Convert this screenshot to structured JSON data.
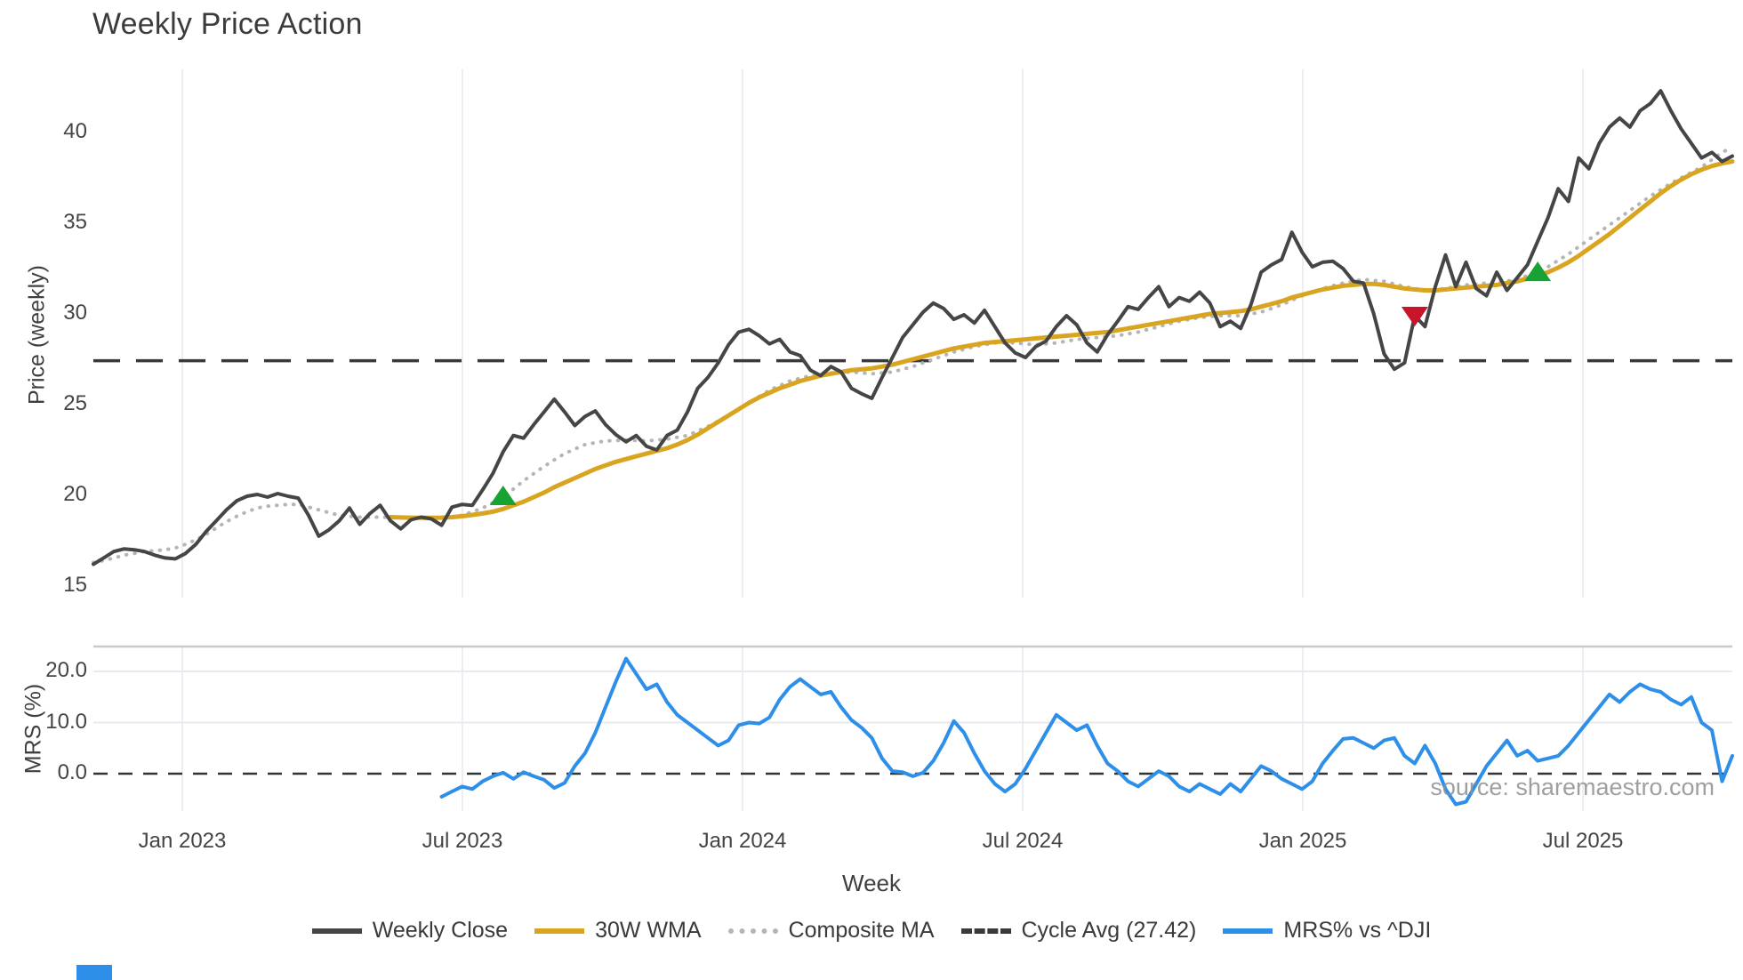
{
  "title": "Weekly Price Action",
  "watermark": "source: sharemaestro.com",
  "axes": {
    "x_label": "Week",
    "x_tick_labels": [
      "Jan 2023",
      "Jul 2023",
      "Jan 2024",
      "Jul 2024",
      "Jan 2025",
      "Jul 2025"
    ],
    "main_y_label": "Price (weekly)",
    "main_y_ticks": [
      40,
      35,
      30,
      25,
      20,
      15
    ],
    "mrs_y_label": "MRS (%)",
    "mrs_y_ticks": [
      "20.0",
      "10.0",
      "0.0"
    ]
  },
  "legend": {
    "items": [
      {
        "label": "Weekly Close",
        "style": "solid",
        "color": "#454545"
      },
      {
        "label": "30W WMA",
        "style": "solid",
        "color": "#d9a521"
      },
      {
        "label": "Composite MA",
        "style": "dotted",
        "color": "#b5b5b5"
      },
      {
        "label": "Cycle Avg (27.42)",
        "style": "dashed",
        "color": "#3a3a3a"
      },
      {
        "label": "MRS% vs ^DJI",
        "style": "solid",
        "color": "#2e8fe8"
      }
    ]
  },
  "colors": {
    "close": "#454545",
    "wma": "#d9a521",
    "composite": "#b5b5b5",
    "cycle": "#3a3a3a",
    "mrs": "#2e8fe8",
    "buy_marker": "#18a233",
    "sell_marker": "#c9152c",
    "gridline": "#ededf3",
    "mrs_grid": "#e9e9f0",
    "mrs_border": "#c9c9c9",
    "zero_line": "#333333"
  },
  "chart_data": [
    {
      "type": "line",
      "title": "Weekly Price Action",
      "xlabel": "Week",
      "ylabel": "Price (weekly)",
      "x_range_labels": [
        "Nov 2022",
        "Oct 2025"
      ],
      "ylim": [
        14.4,
        43.5
      ],
      "grid": "vertical-only",
      "cycle_avg": 27.42,
      "series": [
        {
          "name": "Weekly Close",
          "start_index": 0,
          "values": [
            16.2,
            16.55,
            16.9,
            17.05,
            17.0,
            16.9,
            16.7,
            16.55,
            16.5,
            16.8,
            17.3,
            18.0,
            18.6,
            19.2,
            19.7,
            19.95,
            20.05,
            19.9,
            20.1,
            19.95,
            19.85,
            18.9,
            17.75,
            18.1,
            18.6,
            19.3,
            18.4,
            19.0,
            19.45,
            18.6,
            18.15,
            18.65,
            18.8,
            18.7,
            18.35,
            19.35,
            19.5,
            19.45,
            20.3,
            21.2,
            22.4,
            23.3,
            23.15,
            23.9,
            24.6,
            25.3,
            24.6,
            23.85,
            24.35,
            24.65,
            23.9,
            23.35,
            22.95,
            23.3,
            22.7,
            22.5,
            23.3,
            23.6,
            24.6,
            25.9,
            26.5,
            27.3,
            28.3,
            29.0,
            29.15,
            28.8,
            28.35,
            28.6,
            27.9,
            27.7,
            26.9,
            26.6,
            27.1,
            26.8,
            25.9,
            25.6,
            25.35,
            26.5,
            27.6,
            28.7,
            29.4,
            30.1,
            30.6,
            30.3,
            29.7,
            29.95,
            29.5,
            30.2,
            29.3,
            28.4,
            27.85,
            27.6,
            28.2,
            28.5,
            29.3,
            29.9,
            29.4,
            28.4,
            27.9,
            28.85,
            29.6,
            30.4,
            30.25,
            30.9,
            31.5,
            30.4,
            30.9,
            30.7,
            31.2,
            30.6,
            29.3,
            29.6,
            29.2,
            30.5,
            32.3,
            32.7,
            33.0,
            34.5,
            33.4,
            32.6,
            32.85,
            32.9,
            32.5,
            31.8,
            31.7,
            30.0,
            27.8,
            26.95,
            27.3,
            29.9,
            29.3,
            31.5,
            33.25,
            31.5,
            32.85,
            31.4,
            31.0,
            32.3,
            31.3,
            32.0,
            32.7,
            34.0,
            35.3,
            36.9,
            36.2,
            38.6,
            38.0,
            39.4,
            40.3,
            40.8,
            40.3,
            41.2,
            41.6,
            42.3,
            41.2,
            40.2,
            39.4,
            38.6,
            38.9,
            38.4,
            38.7
          ]
        },
        {
          "name": "30W WMA",
          "start_index": 29,
          "values": [
            18.8,
            18.78,
            18.77,
            18.76,
            18.76,
            18.77,
            18.8,
            18.85,
            18.92,
            19.0,
            19.1,
            19.25,
            19.45,
            19.65,
            19.9,
            20.15,
            20.45,
            20.7,
            20.95,
            21.2,
            21.45,
            21.65,
            21.85,
            22.0,
            22.15,
            22.3,
            22.45,
            22.6,
            22.8,
            23.05,
            23.35,
            23.7,
            24.05,
            24.4,
            24.75,
            25.1,
            25.4,
            25.65,
            25.9,
            26.1,
            26.3,
            26.45,
            26.6,
            26.7,
            26.8,
            26.9,
            26.95,
            27.0,
            27.1,
            27.2,
            27.35,
            27.5,
            27.65,
            27.8,
            27.95,
            28.1,
            28.2,
            28.3,
            28.4,
            28.45,
            28.5,
            28.55,
            28.6,
            28.65,
            28.7,
            28.75,
            28.8,
            28.85,
            28.9,
            28.95,
            29.0,
            29.1,
            29.2,
            29.3,
            29.4,
            29.5,
            29.6,
            29.7,
            29.8,
            29.9,
            30.0,
            30.05,
            30.1,
            30.15,
            30.25,
            30.4,
            30.55,
            30.7,
            30.9,
            31.05,
            31.2,
            31.35,
            31.45,
            31.55,
            31.6,
            31.65,
            31.65,
            31.6,
            31.5,
            31.4,
            31.35,
            31.3,
            31.3,
            31.35,
            31.4,
            31.45,
            31.5,
            31.55,
            31.6,
            31.7,
            31.8,
            31.95,
            32.1,
            32.3,
            32.55,
            32.85,
            33.2,
            33.6,
            34.0,
            34.4,
            34.85,
            35.3,
            35.75,
            36.2,
            36.65,
            37.05,
            37.4,
            37.7,
            37.95,
            38.15,
            38.3,
            38.4
          ]
        },
        {
          "name": "Composite MA",
          "start_index": 0,
          "values": [
            16.3,
            16.4,
            16.55,
            16.7,
            16.8,
            16.9,
            16.95,
            17.0,
            17.1,
            17.3,
            17.55,
            17.85,
            18.2,
            18.55,
            18.85,
            19.1,
            19.3,
            19.4,
            19.45,
            19.5,
            19.5,
            19.35,
            19.2,
            19.05,
            18.9,
            18.85,
            18.8,
            18.8,
            18.8,
            18.78,
            18.75,
            18.75,
            18.75,
            18.72,
            18.7,
            18.8,
            18.9,
            19.1,
            19.3,
            19.6,
            19.9,
            20.35,
            20.8,
            21.2,
            21.6,
            21.95,
            22.3,
            22.55,
            22.8,
            22.9,
            23.0,
            23.02,
            23.05,
            23.02,
            23.0,
            23.05,
            23.1,
            23.2,
            23.3,
            23.55,
            23.8,
            24.1,
            24.4,
            24.75,
            25.1,
            25.45,
            25.8,
            26.05,
            26.3,
            26.45,
            26.6,
            26.67,
            26.75,
            26.77,
            26.8,
            26.75,
            26.7,
            26.75,
            26.8,
            26.95,
            27.1,
            27.3,
            27.5,
            27.7,
            27.9,
            28.05,
            28.2,
            28.3,
            28.4,
            28.4,
            28.4,
            28.35,
            28.3,
            28.35,
            28.4,
            28.5,
            28.6,
            28.65,
            28.7,
            28.75,
            28.8,
            28.9,
            29.0,
            29.15,
            29.3,
            29.45,
            29.6,
            29.7,
            29.8,
            29.85,
            29.9,
            29.9,
            29.9,
            30.0,
            30.1,
            30.3,
            30.5,
            30.75,
            31.0,
            31.2,
            31.4,
            31.55,
            31.7,
            31.8,
            31.9,
            31.85,
            31.8,
            31.65,
            31.5,
            31.4,
            31.3,
            31.35,
            31.4,
            31.5,
            31.6,
            31.65,
            31.7,
            31.75,
            31.8,
            31.95,
            32.1,
            32.35,
            32.6,
            32.95,
            33.3,
            33.7,
            34.1,
            34.5,
            34.9,
            35.3,
            35.7,
            36.1,
            36.5,
            36.85,
            37.2,
            37.5,
            37.8,
            38.1,
            38.5,
            38.9,
            39.2
          ]
        }
      ],
      "markers": [
        {
          "type": "buy",
          "index": 40,
          "value": 19.95
        },
        {
          "type": "sell",
          "index": 129,
          "value": 29.9
        },
        {
          "type": "buy",
          "index": 141,
          "value": 32.3
        }
      ]
    },
    {
      "type": "line",
      "ylabel": "MRS (%)",
      "zero_line": 0.0,
      "ylim": [
        -7.5,
        24.8
      ],
      "series": [
        {
          "name": "MRS% vs ^DJI",
          "start_index": 34,
          "values": [
            -4.5,
            -3.5,
            -2.5,
            -3.0,
            -1.5,
            -0.5,
            0.2,
            -1.0,
            0.3,
            -0.5,
            -1.2,
            -2.8,
            -1.8,
            1.5,
            4.0,
            8.0,
            13.0,
            18.0,
            22.5,
            19.5,
            16.5,
            17.5,
            14.0,
            11.5,
            10.0,
            8.5,
            7.0,
            5.5,
            6.5,
            9.5,
            10.0,
            9.8,
            11.0,
            14.5,
            17.0,
            18.5,
            17.0,
            15.5,
            16.0,
            13.0,
            10.5,
            9.0,
            7.0,
            3.0,
            0.5,
            0.3,
            -0.5,
            0.2,
            2.5,
            6.0,
            10.3,
            8.0,
            4.0,
            0.5,
            -2.0,
            -3.5,
            -2.0,
            1.0,
            4.5,
            8.0,
            11.5,
            10.0,
            8.5,
            9.5,
            5.5,
            2.0,
            0.5,
            -1.5,
            -2.5,
            -1.0,
            0.5,
            -0.5,
            -2.5,
            -3.5,
            -2.0,
            -3.0,
            -4.0,
            -2.0,
            -3.5,
            -1.0,
            1.5,
            0.5,
            -1.0,
            -2.0,
            -3.0,
            -1.5,
            2.0,
            4.5,
            6.8,
            7.0,
            6.0,
            5.0,
            6.5,
            7.0,
            3.5,
            2.0,
            5.5,
            2.0,
            -3.0,
            -6.0,
            -5.5,
            -2.0,
            1.5,
            4.0,
            6.5,
            3.5,
            4.5,
            2.5,
            3.0,
            3.5,
            5.5,
            8.0,
            10.5,
            13.0,
            15.5,
            14.0,
            16.0,
            17.5,
            16.5,
            16.0,
            14.5,
            13.5,
            15.0,
            10.0,
            8.5,
            -1.5,
            3.5
          ]
        }
      ]
    }
  ]
}
